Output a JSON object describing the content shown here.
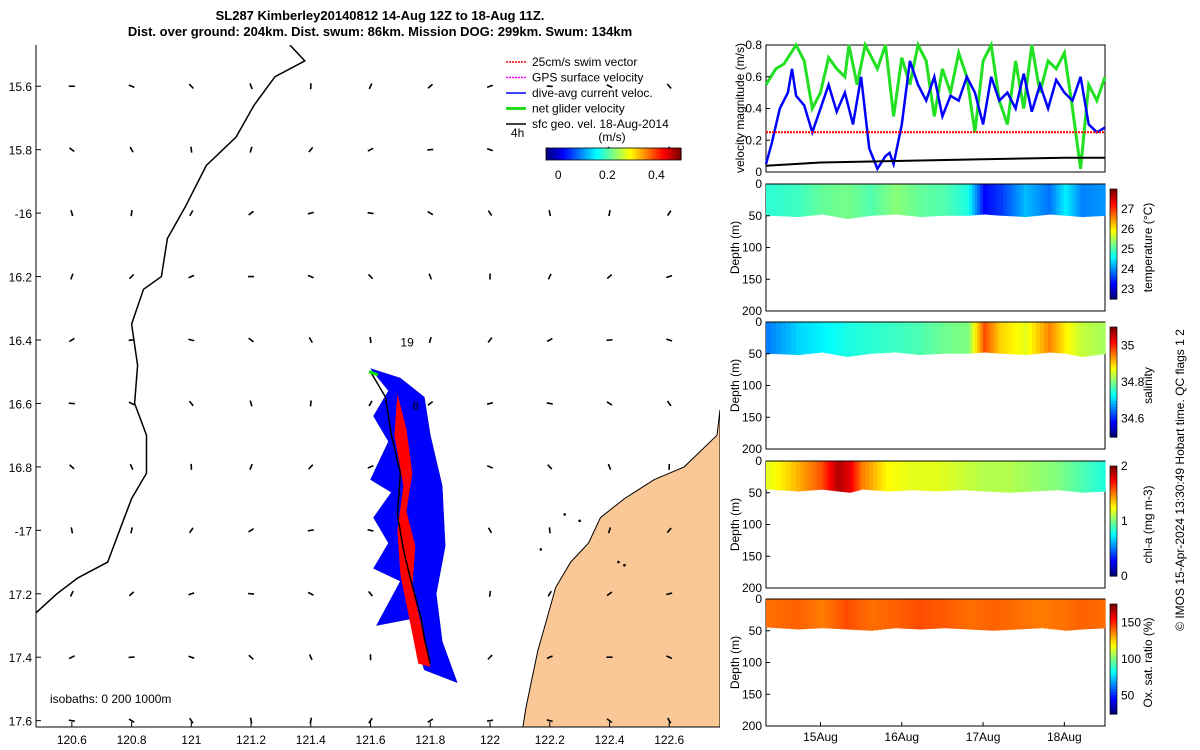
{
  "title": {
    "line1": "SL287 Kimberley20140812 14-Aug 12Z to 18-Aug 11Z.",
    "line2": "Dist. over ground: 204km. Dist. swum: 86km. Mission DOG: 299km. Swum: 134km"
  },
  "colors": {
    "land": "#f9c896",
    "track": "#0000ff",
    "red": "#ff0000",
    "green": "#00dd00"
  },
  "chart_data": [
    {
      "type": "map",
      "id": "track-map",
      "xlabel": "",
      "ylabel": "",
      "xlim": [
        120.48,
        122.77
      ],
      "ylim": [
        -17.62,
        -15.47
      ],
      "xticks": [
        120.6,
        120.8,
        121,
        121.2,
        121.4,
        121.6,
        121.8,
        122,
        122.2,
        122.4,
        122.6
      ],
      "xtick_labels": [
        "120.6",
        "120.8",
        "121",
        "121.2",
        "121.4",
        "121.6",
        "121.8",
        "122",
        "122.2",
        "122.4",
        "122.6"
      ],
      "yticks": [
        -15.6,
        -15.8,
        -16,
        -16.2,
        -16.4,
        -16.6,
        -16.8,
        -17,
        -17.2,
        -17.4,
        -17.6
      ],
      "ytick_labels": [
        "15.6",
        "15.8",
        "-16",
        "16.2",
        "16.4",
        "16.6",
        "16.8",
        "-17",
        "17.2",
        "17.4",
        "17.6"
      ],
      "legend": [
        "25cm/s swim vector",
        "GPS surface velocity",
        "dive-avg current veloc.",
        "net glider velocity",
        "sfc geo. vel. 18-Aug-2014"
      ],
      "annotations": [
        {
          "text": "19",
          "lon": 121.7,
          "lat": -16.42
        },
        {
          "text": "8",
          "lon": 121.74,
          "lat": -16.62
        },
        {
          "text": "4h",
          "lon": 122.07,
          "lat": -15.76
        }
      ],
      "colorbar": {
        "label": "(m/s)",
        "ticks": [
          "0",
          "0.2",
          "0.4"
        ],
        "range": [
          -0.05,
          0.5
        ]
      },
      "isobath_note": "isobaths: 0   200  1000m",
      "glider_track": [
        [
          121.6,
          -16.5
        ],
        [
          121.65,
          -16.58
        ],
        [
          121.67,
          -16.7
        ],
        [
          121.7,
          -16.82
        ],
        [
          121.69,
          -16.95
        ],
        [
          121.71,
          -17.06
        ],
        [
          121.73,
          -17.14
        ],
        [
          121.77,
          -17.28
        ],
        [
          121.78,
          -17.34
        ],
        [
          121.8,
          -17.42
        ]
      ],
      "current_polygon": [
        [
          121.6,
          -16.49
        ],
        [
          121.7,
          -16.52
        ],
        [
          121.78,
          -16.58
        ],
        [
          121.8,
          -16.7
        ],
        [
          121.84,
          -16.86
        ],
        [
          121.85,
          -17.05
        ],
        [
          121.82,
          -17.2
        ],
        [
          121.84,
          -17.35
        ],
        [
          121.89,
          -17.48
        ],
        [
          121.78,
          -17.44
        ],
        [
          121.73,
          -17.28
        ],
        [
          121.62,
          -17.3
        ],
        [
          121.7,
          -17.16
        ],
        [
          121.61,
          -17.12
        ],
        [
          121.66,
          -17.04
        ],
        [
          121.61,
          -16.96
        ],
        [
          121.67,
          -16.88
        ],
        [
          121.6,
          -16.84
        ],
        [
          121.66,
          -16.72
        ],
        [
          121.61,
          -16.64
        ],
        [
          121.66,
          -16.56
        ]
      ],
      "red_polygon": [
        [
          121.69,
          -16.57
        ],
        [
          121.72,
          -16.68
        ],
        [
          121.74,
          -16.82
        ],
        [
          121.72,
          -16.94
        ],
        [
          121.75,
          -17.05
        ],
        [
          121.74,
          -17.18
        ],
        [
          121.77,
          -17.3
        ],
        [
          121.8,
          -17.43
        ],
        [
          121.76,
          -17.42
        ],
        [
          121.73,
          -17.28
        ],
        [
          121.7,
          -17.14
        ],
        [
          121.69,
          -17.0
        ],
        [
          121.71,
          -16.86
        ],
        [
          121.68,
          -16.7
        ]
      ],
      "coastline_west": [
        [
          121.33,
          -15.47
        ],
        [
          121.38,
          -15.52
        ],
        [
          121.28,
          -15.57
        ],
        [
          121.21,
          -15.66
        ],
        [
          121.15,
          -15.76
        ],
        [
          121.05,
          -15.85
        ],
        [
          120.98,
          -15.98
        ],
        [
          120.92,
          -16.08
        ],
        [
          120.9,
          -16.2
        ],
        [
          120.84,
          -16.24
        ],
        [
          120.8,
          -16.35
        ],
        [
          120.82,
          -16.48
        ],
        [
          120.81,
          -16.6
        ],
        [
          120.85,
          -16.7
        ],
        [
          120.85,
          -16.82
        ],
        [
          120.8,
          -16.9
        ],
        [
          120.76,
          -17.0
        ],
        [
          120.72,
          -17.1
        ],
        [
          120.62,
          -17.15
        ],
        [
          120.55,
          -17.2
        ],
        [
          120.48,
          -17.26
        ]
      ],
      "land_east": [
        [
          122.77,
          -16.62
        ],
        [
          122.76,
          -16.7
        ],
        [
          122.65,
          -16.8
        ],
        [
          122.55,
          -16.84
        ],
        [
          122.45,
          -16.9
        ],
        [
          122.37,
          -16.96
        ],
        [
          122.33,
          -17.04
        ],
        [
          122.27,
          -17.1
        ],
        [
          122.22,
          -17.18
        ],
        [
          122.19,
          -17.28
        ],
        [
          122.16,
          -17.38
        ],
        [
          122.14,
          -17.47
        ],
        [
          122.12,
          -17.56
        ],
        [
          122.11,
          -17.62
        ],
        [
          122.77,
          -17.62
        ]
      ]
    },
    {
      "type": "line",
      "id": "velocity-panel",
      "ylabel": "velocity magnitude (m/s)",
      "xlim": [
        14.33,
        18.5
      ],
      "ylim": [
        0,
        0.8
      ],
      "yticks": [
        "0",
        "0.2",
        "0.4",
        "0.6",
        "0.8"
      ],
      "series": [
        {
          "name": "net glider velocity",
          "color": "#22e022",
          "x": [
            14.33,
            14.45,
            14.55,
            14.7,
            14.8,
            14.9,
            15.0,
            15.1,
            15.2,
            15.3,
            15.35,
            15.45,
            15.55,
            15.7,
            15.8,
            15.9,
            16.0,
            16.1,
            16.2,
            16.3,
            16.4,
            16.5,
            16.6,
            16.7,
            16.8,
            16.9,
            17.0,
            17.1,
            17.2,
            17.3,
            17.4,
            17.5,
            17.6,
            17.7,
            17.8,
            17.9,
            18.0,
            18.1,
            18.2,
            18.3,
            18.4,
            18.5
          ],
          "values": [
            0.55,
            0.65,
            0.68,
            0.8,
            0.7,
            0.4,
            0.5,
            0.72,
            0.65,
            0.6,
            0.8,
            0.55,
            0.8,
            0.65,
            0.8,
            0.35,
            0.72,
            0.55,
            0.8,
            0.7,
            0.35,
            0.65,
            0.5,
            0.75,
            0.6,
            0.25,
            0.7,
            0.8,
            0.45,
            0.3,
            0.7,
            0.4,
            0.8,
            0.5,
            0.7,
            0.65,
            0.75,
            0.4,
            0.02,
            0.55,
            0.45,
            0.6
          ]
        },
        {
          "name": "dive-avg current veloc.",
          "color": "#0000ff",
          "x": [
            14.33,
            14.4,
            14.5,
            14.6,
            14.65,
            14.7,
            14.8,
            14.9,
            15.0,
            15.1,
            15.2,
            15.3,
            15.4,
            15.5,
            15.6,
            15.7,
            15.8,
            15.85,
            15.9,
            16.0,
            16.1,
            16.2,
            16.3,
            16.4,
            16.5,
            16.6,
            16.7,
            16.8,
            16.9,
            17.0,
            17.1,
            17.2,
            17.3,
            17.4,
            17.5,
            17.6,
            17.7,
            17.8,
            17.9,
            18.0,
            18.1,
            18.2,
            18.3,
            18.4,
            18.5
          ],
          "values": [
            0.05,
            0.18,
            0.4,
            0.5,
            0.65,
            0.48,
            0.42,
            0.25,
            0.4,
            0.55,
            0.38,
            0.5,
            0.3,
            0.6,
            0.15,
            0.02,
            0.1,
            0.12,
            0.05,
            0.3,
            0.7,
            0.55,
            0.45,
            0.6,
            0.35,
            0.48,
            0.45,
            0.6,
            0.5,
            0.3,
            0.6,
            0.45,
            0.5,
            0.4,
            0.62,
            0.38,
            0.55,
            0.4,
            0.58,
            0.5,
            0.45,
            0.6,
            0.3,
            0.25,
            0.28
          ]
        },
        {
          "name": "25cm/s swim vector",
          "color": "#ff0000",
          "x": [
            14.33,
            18.5
          ],
          "values": [
            0.25,
            0.25
          ]
        },
        {
          "name": "sfc geo. vel.",
          "color": "#000000",
          "x": [
            14.33,
            15.0,
            16.0,
            17.0,
            18.0,
            18.5
          ],
          "values": [
            0.04,
            0.06,
            0.07,
            0.08,
            0.09,
            0.09
          ]
        }
      ]
    },
    {
      "type": "heatmap",
      "id": "temperature-panel",
      "ylabel": "Depth (m)",
      "yticks": [
        "0",
        "50",
        "100",
        "150",
        "200"
      ],
      "colorbar_label": "temperature (°C)",
      "colorbar_ticks": [
        "23",
        "24",
        "25",
        "26",
        "27"
      ],
      "crange": [
        22.5,
        28
      ],
      "x": [
        14.33,
        14.7,
        15.0,
        15.3,
        15.6,
        15.9,
        16.2,
        16.5,
        16.8,
        17.0,
        17.2,
        17.5,
        17.8,
        18.0,
        18.2,
        18.5
      ],
      "values": [
        24.8,
        24.9,
        25.1,
        25.2,
        25.0,
        25.3,
        25.1,
        25.0,
        24.7,
        23.2,
        23.5,
        24.2,
        23.8,
        24.5,
        23.9,
        24.0
      ],
      "layer_bottom": [
        50,
        52,
        48,
        55,
        50,
        48,
        52,
        50,
        50,
        48,
        50,
        52,
        48,
        50,
        52,
        50
      ]
    },
    {
      "type": "heatmap",
      "id": "salinity-panel",
      "ylabel": "Depth (m)",
      "yticks": [
        "0",
        "50",
        "100",
        "150",
        "200"
      ],
      "colorbar_label": "salinity",
      "colorbar_ticks": [
        "34.6",
        "34.8",
        "35"
      ],
      "crange": [
        34.5,
        35.1
      ],
      "x": [
        14.33,
        14.7,
        15.0,
        15.3,
        15.6,
        15.9,
        16.2,
        16.5,
        16.8,
        17.0,
        17.2,
        17.5,
        17.8,
        18.0,
        18.2,
        18.5
      ],
      "values": [
        34.65,
        34.7,
        34.72,
        34.74,
        34.75,
        34.76,
        34.77,
        34.79,
        34.8,
        34.98,
        34.9,
        34.86,
        34.95,
        34.88,
        34.84,
        34.82
      ],
      "layer_bottom": [
        50,
        52,
        48,
        55,
        50,
        48,
        52,
        50,
        50,
        48,
        50,
        52,
        48,
        50,
        55,
        50
      ]
    },
    {
      "type": "heatmap",
      "id": "chla-panel",
      "ylabel": "Depth (m)",
      "yticks": [
        "0",
        "50",
        "100",
        "150",
        "200"
      ],
      "colorbar_label": "chl-a (mg m-3)",
      "colorbar_ticks": [
        "0",
        "1",
        "2"
      ],
      "crange": [
        0,
        2
      ],
      "x": [
        14.33,
        14.7,
        15.0,
        15.2,
        15.35,
        15.5,
        15.8,
        16.1,
        16.4,
        16.7,
        17.0,
        17.3,
        17.6,
        17.9,
        18.2,
        18.5
      ],
      "values": [
        1.2,
        1.4,
        1.6,
        1.9,
        1.8,
        1.5,
        1.25,
        1.2,
        1.2,
        1.15,
        1.1,
        1.1,
        1.05,
        1.0,
        0.9,
        0.8
      ],
      "layer_bottom": [
        45,
        48,
        45,
        48,
        50,
        45,
        48,
        46,
        48,
        46,
        48,
        50,
        48,
        46,
        50,
        48
      ]
    },
    {
      "type": "heatmap",
      "id": "oxygen-panel",
      "ylabel": "Depth (m)",
      "yticks": [
        "0",
        "50",
        "100",
        "150",
        "200"
      ],
      "colorbar_label": "Ox. sat. ratio (%)",
      "colorbar_ticks": [
        "50",
        "100",
        "150"
      ],
      "crange": [
        25,
        175
      ],
      "x": [
        14.33,
        14.7,
        15.0,
        15.3,
        15.6,
        15.9,
        16.2,
        16.5,
        16.8,
        17.1,
        17.4,
        17.7,
        18.0,
        18.2,
        18.5
      ],
      "values": [
        140,
        142,
        138,
        145,
        140,
        142,
        145,
        143,
        140,
        142,
        140,
        138,
        140,
        142,
        140
      ],
      "layer_bottom": [
        45,
        48,
        46,
        48,
        50,
        46,
        48,
        46,
        48,
        50,
        48,
        46,
        50,
        48,
        46
      ],
      "xticks": [
        15,
        16,
        17,
        18
      ],
      "xtick_labels": [
        "15Aug",
        "16Aug",
        "17Aug",
        "18Aug"
      ]
    }
  ],
  "footer": "© IMOS 15-Apr-2024 13:30:49 Hobart time. QC flags 1  2"
}
